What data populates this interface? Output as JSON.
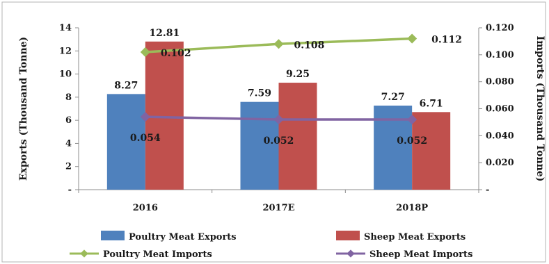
{
  "chart_data": {
    "type": "bar",
    "categories": [
      "2016",
      "2017E",
      "2018P"
    ],
    "y_left": {
      "label": "Exports (Thousand Tonne)",
      "ticks": [
        "-",
        "2",
        "4",
        "6",
        "8",
        "10",
        "12",
        "14"
      ],
      "range": [
        0,
        14
      ]
    },
    "y_right": {
      "label": "Imports (Thousand Tonne)",
      "ticks": [
        "-",
        "0.020",
        "0.040",
        "0.060",
        "0.080",
        "0.100",
        "0.120"
      ],
      "range": [
        0,
        0.12
      ]
    },
    "bar_series": [
      {
        "name": "Poultry Meat Exports",
        "values": [
          8.27,
          7.59,
          7.27
        ],
        "labels": [
          "8.27",
          "7.59",
          "7.27"
        ],
        "color": "#4f81bd"
      },
      {
        "name": "Sheep Meat Exports",
        "values": [
          12.81,
          9.25,
          6.71
        ],
        "labels": [
          "12.81",
          "9.25",
          "6.71"
        ],
        "color": "#c0504d"
      }
    ],
    "line_series": [
      {
        "name": "Poultry Meat Imports",
        "values": [
          0.102,
          0.108,
          0.112
        ],
        "labels": [
          "0.102",
          "0.108",
          "0.112"
        ],
        "color": "#9bbb59"
      },
      {
        "name": "Sheep Meat Imports",
        "values": [
          0.054,
          0.052,
          0.052
        ],
        "labels": [
          "0.054",
          "0.052",
          "0.052"
        ],
        "color": "#8064a2"
      }
    ],
    "grid": false,
    "legend_position": "bottom"
  }
}
